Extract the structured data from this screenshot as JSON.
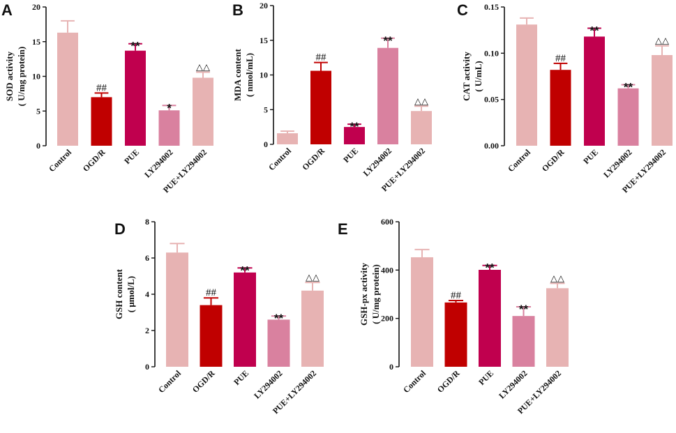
{
  "chart_data": [
    {
      "type": "bar",
      "panel": "A",
      "ylabel_line1": "SOD activity",
      "ylabel_line2": "( U/mg protein)",
      "ylim": [
        0,
        20
      ],
      "yticks": [
        "0",
        "5",
        "10",
        "15",
        "20"
      ],
      "categories": [
        "Control",
        "OGD/R",
        "PUE",
        "LY294002",
        "PUE+LY294002"
      ],
      "values": [
        16.3,
        7.0,
        13.7,
        5.1,
        9.8
      ],
      "errors": [
        1.7,
        0.6,
        1.0,
        0.7,
        0.8
      ],
      "annotations": [
        "",
        "##",
        "**",
        "*",
        "△△"
      ]
    },
    {
      "type": "bar",
      "panel": "B",
      "ylabel_line1": "MDA content",
      "ylabel_line2": "( nmol/mL)",
      "ylim": [
        0,
        20
      ],
      "yticks": [
        "0",
        "5",
        "10",
        "15",
        "20"
      ],
      "categories": [
        "Control",
        "OGD/R",
        "PUE",
        "LY294002",
        "PUE+LY294002"
      ],
      "values": [
        1.6,
        10.6,
        2.5,
        13.9,
        4.8
      ],
      "errors": [
        0.3,
        1.2,
        0.4,
        1.4,
        0.7
      ],
      "annotations": [
        "",
        "##",
        "**",
        "**",
        "△△"
      ]
    },
    {
      "type": "bar",
      "panel": "C",
      "ylabel_line1": "CAT activity",
      "ylabel_line2": "( U/mL)",
      "ylim": [
        0,
        0.15
      ],
      "yticks": [
        "0.00",
        "0.05",
        "0.10",
        "0.15"
      ],
      "categories": [
        "Control",
        "OGD/R",
        "PUE",
        "LY294002",
        "PUE+LY294002"
      ],
      "values": [
        0.131,
        0.082,
        0.118,
        0.062,
        0.098
      ],
      "errors": [
        0.007,
        0.007,
        0.009,
        0.004,
        0.01
      ],
      "annotations": [
        "",
        "##",
        "**",
        "**",
        "△△"
      ]
    },
    {
      "type": "bar",
      "panel": "D",
      "ylabel_line1": "GSH content",
      "ylabel_line2": "( μmol/L)",
      "ylim": [
        0,
        8
      ],
      "yticks": [
        "0",
        "2",
        "4",
        "6",
        "8"
      ],
      "categories": [
        "Control",
        "OGD/R",
        "PUE",
        "LY294002",
        "PUE+LY294002"
      ],
      "values": [
        6.3,
        3.4,
        5.2,
        2.6,
        4.2
      ],
      "errors": [
        0.5,
        0.4,
        0.25,
        0.2,
        0.45
      ],
      "annotations": [
        "",
        "##",
        "**",
        "**",
        "△△"
      ]
    },
    {
      "type": "bar",
      "panel": "E",
      "ylabel_line1": "GSH-px activity",
      "ylabel_line2": "( U/mg protein)",
      "ylim": [
        0,
        600
      ],
      "yticks": [
        "0",
        "200",
        "400",
        "600"
      ],
      "categories": [
        "Control",
        "OGD/R",
        "PUE",
        "LY294002",
        "PUE+LY294002"
      ],
      "values": [
        453,
        266,
        401,
        210,
        325
      ],
      "errors": [
        32,
        8,
        18,
        38,
        20
      ],
      "annotations": [
        "",
        "##",
        "**",
        "**",
        "△△"
      ]
    }
  ],
  "colors": [
    "#e7b3b3",
    "#c00000",
    "#c0004e",
    "#d9819f",
    "#e7b3b3"
  ]
}
